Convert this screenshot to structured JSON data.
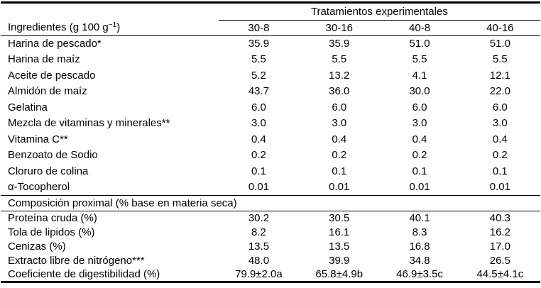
{
  "table": {
    "group_header": "Tratamientos experimentales",
    "row_header_prefix": "Ingredientes (g 100 g",
    "row_header_sup": "−1",
    "row_header_suffix": ")",
    "columns": [
      "30-8",
      "30-16",
      "40-8",
      "40-16"
    ],
    "ingredients": [
      {
        "label": "Harina de pescado*",
        "values": [
          "35.9",
          "35.9",
          "51.0",
          "51.0"
        ]
      },
      {
        "label": "Harina de maíz",
        "values": [
          "5.5",
          "5.5",
          "5.5",
          "5.5"
        ]
      },
      {
        "label": "Aceite de pescado",
        "values": [
          "5.2",
          "13.2",
          "4.1",
          "12.1"
        ]
      },
      {
        "label": "Almidón de maíz",
        "values": [
          "43.7",
          "36.0",
          "30.0",
          "22.0"
        ]
      },
      {
        "label": "Gelatina",
        "values": [
          "6.0",
          "6.0",
          "6.0",
          "6.0"
        ]
      },
      {
        "label": "Mezcla de vitaminas y minerales**",
        "values": [
          "3.0",
          "3.0",
          "3.0",
          "3.0"
        ]
      },
      {
        "label": "Vitamina C**",
        "values": [
          "0.4",
          "0.4",
          "0.4",
          "0.4"
        ]
      },
      {
        "label": "Benzoato de Sodio",
        "values": [
          "0.2",
          "0.2",
          "0.2",
          "0.2"
        ]
      },
      {
        "label": "Cloruro de colina",
        "values": [
          "0.1",
          "0.1",
          "0.1",
          "0.1"
        ]
      },
      {
        "label": "α-Tocopherol",
        "values": [
          "0.01",
          "0.01",
          "0.01",
          "0.01"
        ]
      }
    ],
    "section_header": "Composición proximal (% base en materia seca)",
    "proximal": [
      {
        "label": "Proteína cruda (%)",
        "values": [
          "30.2",
          "30.5",
          "40.1",
          "40.3"
        ]
      },
      {
        "label": "Tola de lipidos (%)",
        "values": [
          "8.2",
          "16.1",
          "8.3",
          "16.2"
        ]
      },
      {
        "label": "Cenizas (%)",
        "values": [
          "13.5",
          "13.5",
          "16.8",
          "17.0"
        ]
      },
      {
        "label": "Extracto libre de nitrógeno***",
        "values": [
          "48.0",
          "39.9",
          "34.8",
          "26.5"
        ]
      },
      {
        "label": "Coeficiente de digestibilidad (%)",
        "values": [
          "79.9±2.0a",
          "65.8±4.9b",
          "46.9±3.5c",
          "44.5±4.1c"
        ]
      }
    ]
  }
}
